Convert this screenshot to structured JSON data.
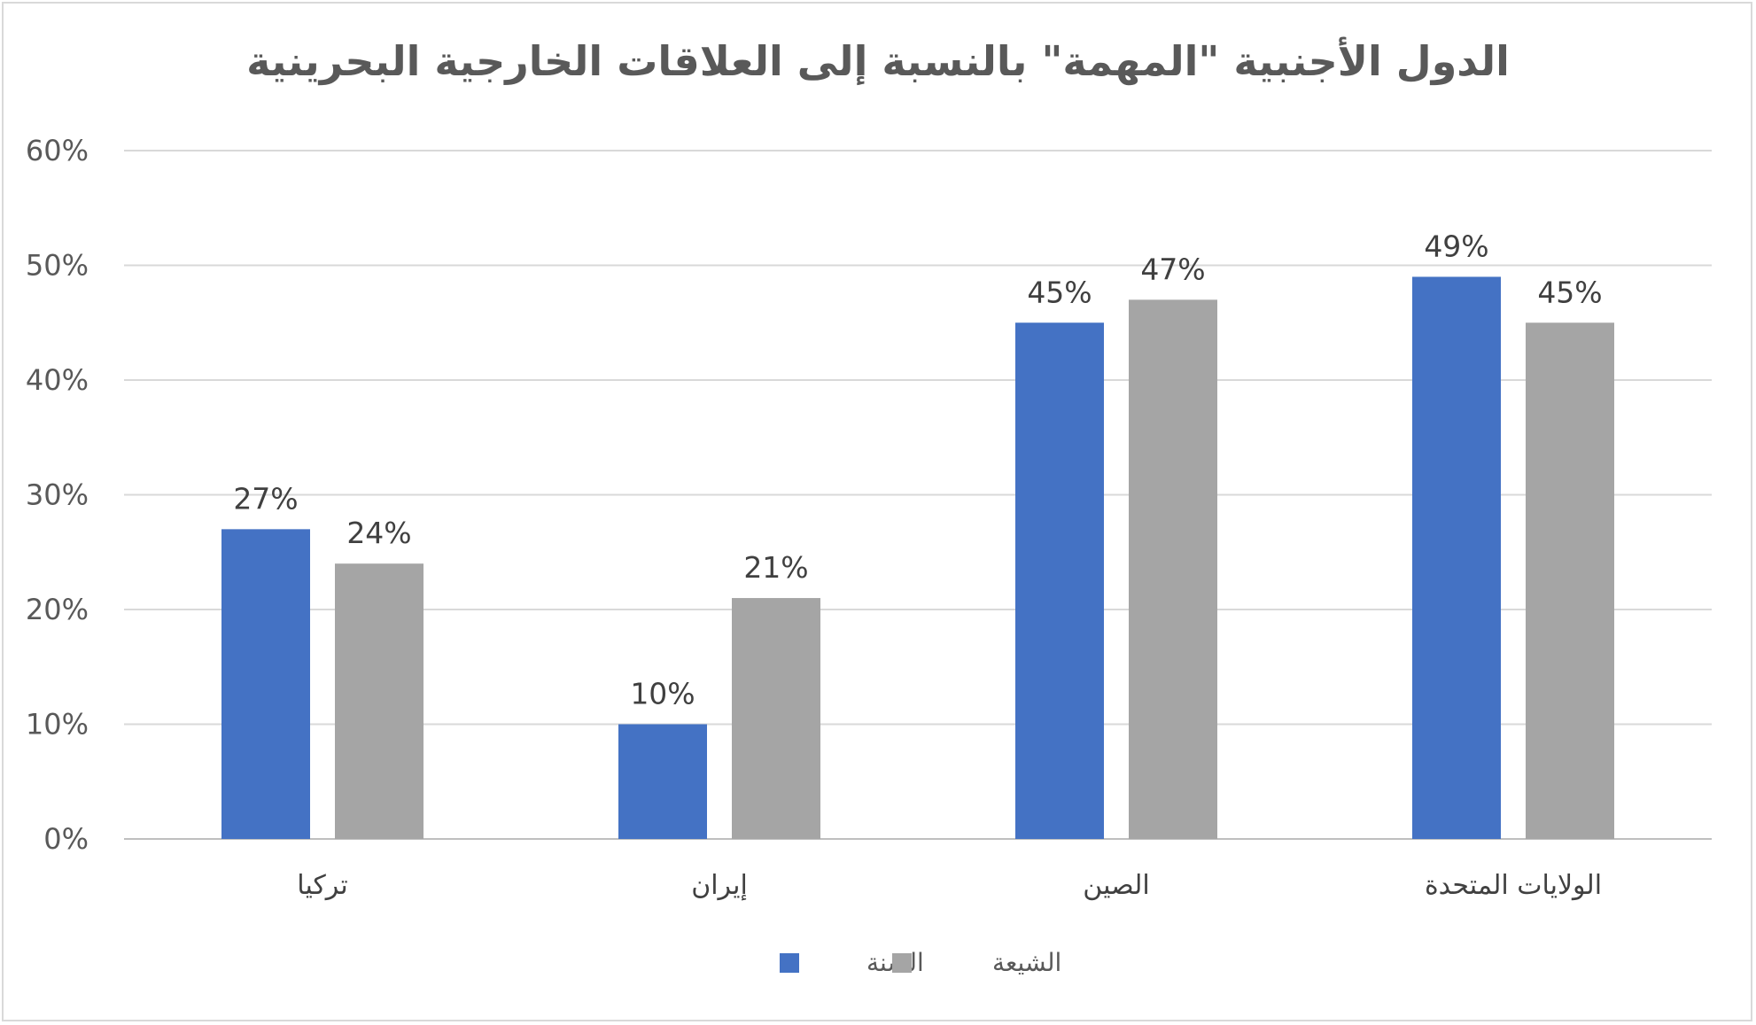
{
  "chart_data": {
    "type": "bar",
    "title": "الدول الأجنبية \"المهمة\" بالنسبة إلى العلاقات الخارجية البحرينية",
    "categories": [
      "تركيا",
      "إيران",
      "الصين",
      "الولايات المتحدة"
    ],
    "series": [
      {
        "name": "السنة",
        "color": "#4472c4",
        "values": [
          27,
          10,
          45,
          49
        ],
        "labels": [
          "27%",
          "10%",
          "45%",
          "49%"
        ]
      },
      {
        "name": "الشيعة",
        "color": "#a5a5a5",
        "values": [
          24,
          21,
          47,
          45
        ],
        "labels": [
          "24%",
          "21%",
          "47%",
          "45%"
        ]
      }
    ],
    "ylim": [
      0,
      60
    ],
    "yticks": [
      "0%",
      "10%",
      "20%",
      "30%",
      "40%",
      "50%",
      "60%"
    ],
    "xlabel": "",
    "ylabel": "",
    "grid": true,
    "legend": "bottom"
  }
}
